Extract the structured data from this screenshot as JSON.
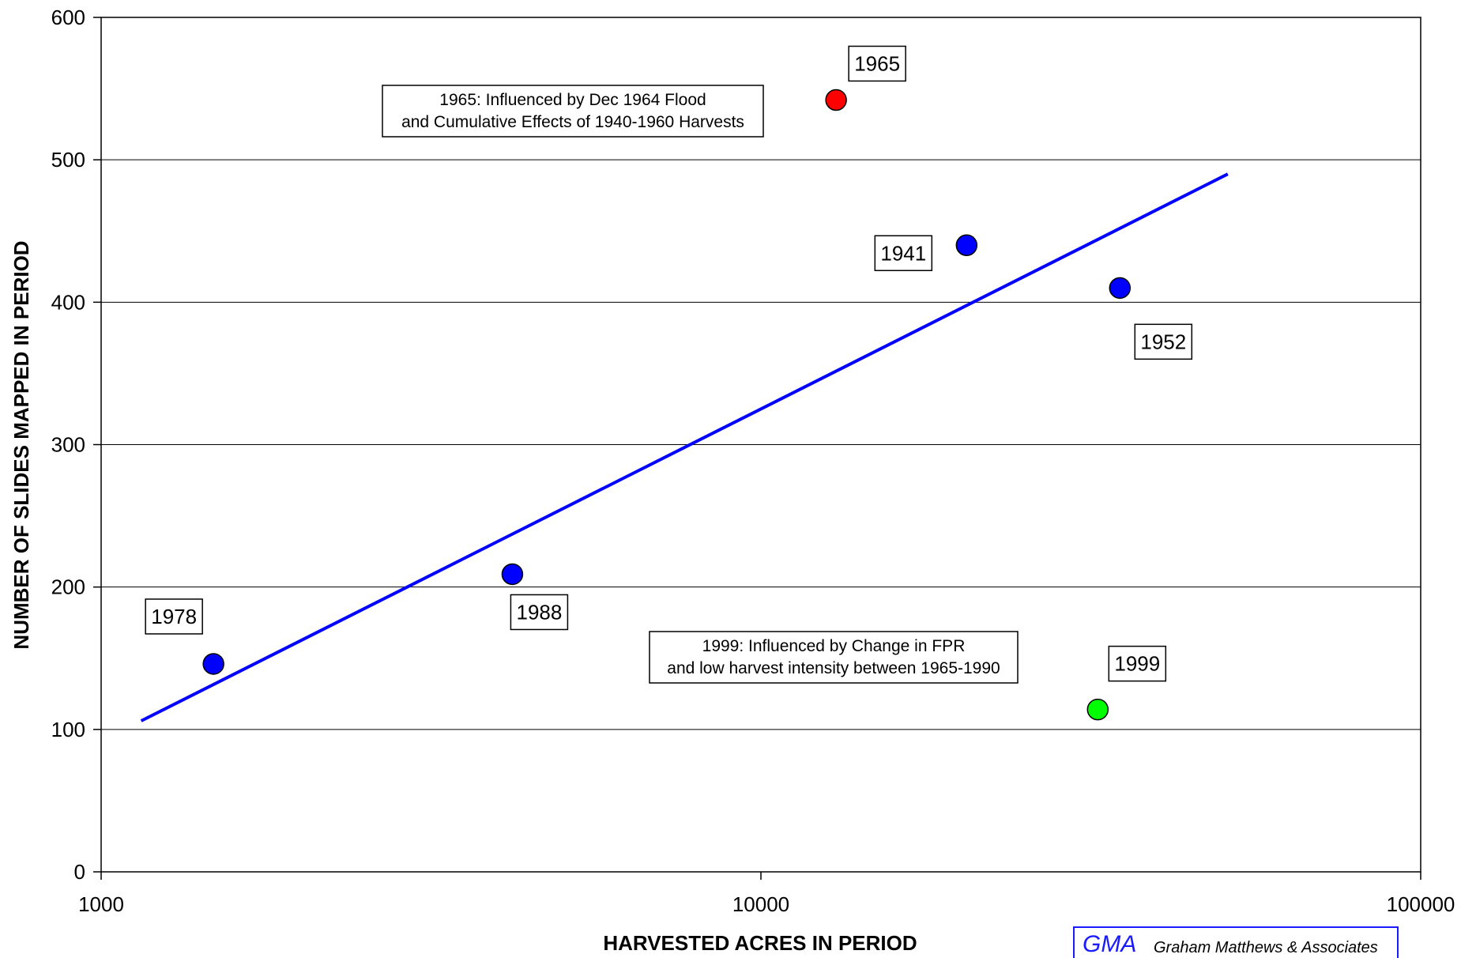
{
  "chart_data": {
    "type": "scatter",
    "xlabel": "HARVESTED ACRES IN PERIOD",
    "ylabel": "NUMBER OF SLIDES MAPPED IN PERIOD",
    "xscale": "log",
    "xlim": [
      1000,
      100000
    ],
    "ylim": [
      0,
      600
    ],
    "x_ticks": [
      1000,
      10000,
      100000
    ],
    "x_tick_labels": [
      "1000",
      "10000",
      "100000"
    ],
    "y_ticks": [
      0,
      100,
      200,
      300,
      400,
      500,
      600
    ],
    "y_tick_labels": [
      "0",
      "100",
      "200",
      "300",
      "400",
      "500",
      "600"
    ],
    "grid": "horizontal",
    "points": [
      {
        "label": "1978",
        "x": 1480,
        "y": 146,
        "color": "#0000ff"
      },
      {
        "label": "1988",
        "x": 4200,
        "y": 209,
        "color": "#0000ff"
      },
      {
        "label": "1965",
        "x": 13000,
        "y": 542,
        "color": "#ff0000"
      },
      {
        "label": "1941",
        "x": 20500,
        "y": 440,
        "color": "#0000ff"
      },
      {
        "label": "1952",
        "x": 35000,
        "y": 410,
        "color": "#0000ff"
      },
      {
        "label": "1999",
        "x": 32400,
        "y": 114,
        "color": "#00ff00"
      }
    ],
    "trendline": {
      "x": [
        1150,
        51000
      ],
      "y": [
        106,
        490
      ],
      "color": "#0000ff"
    },
    "annotations": [
      {
        "lines": [
          "1965:  Influenced by Dec 1964 Flood",
          "and Cumulative Effects of 1940-1960 Harvests"
        ]
      },
      {
        "lines": [
          "1999:  Influenced by Change in FPR",
          "and low harvest intensity between 1965-1990"
        ]
      }
    ]
  },
  "footer": {
    "logo_mark": "GMA",
    "company": "Graham Matthews & Associates",
    "accent_color": "#1a1aff"
  }
}
